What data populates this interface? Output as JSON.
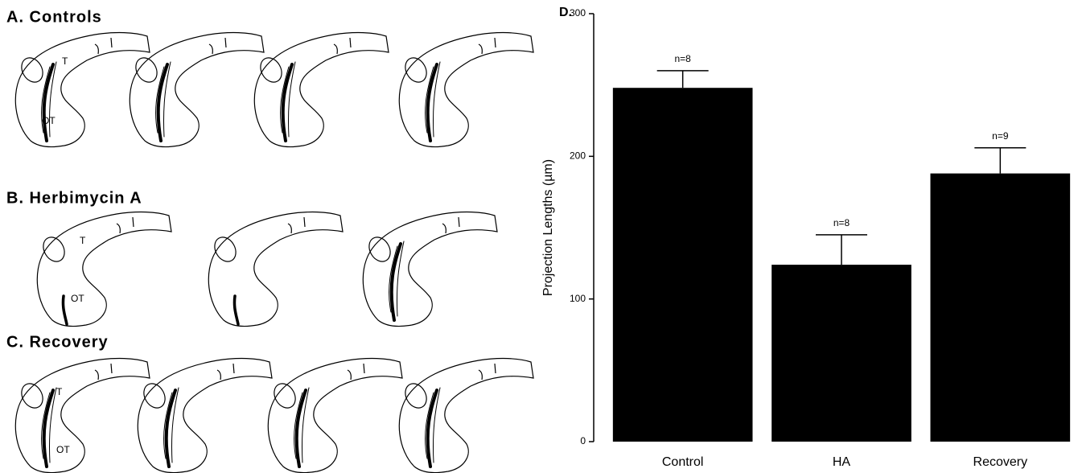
{
  "panels": [
    {
      "label": "A.  Controls",
      "t_label": "T",
      "ot_label": "OT"
    },
    {
      "label": "B.  Herbimycin  A",
      "t_label": "T",
      "ot_label": "OT"
    },
    {
      "label": "C.  Recovery",
      "t_label": "T",
      "ot_label": "OT"
    }
  ],
  "chart_data": {
    "type": "bar",
    "title": "D.",
    "y_label": "Projection Lengths (µm)",
    "categories": [
      "Control",
      "HA",
      "Recovery"
    ],
    "values": [
      248,
      124,
      188
    ],
    "errors": [
      12,
      21,
      18
    ],
    "annotations": [
      "n=8",
      "n=8",
      "n=9"
    ],
    "color": "#000000",
    "ylim": [
      0,
      300
    ],
    "yticks": [
      0,
      100,
      200,
      300
    ],
    "grid": false
  }
}
